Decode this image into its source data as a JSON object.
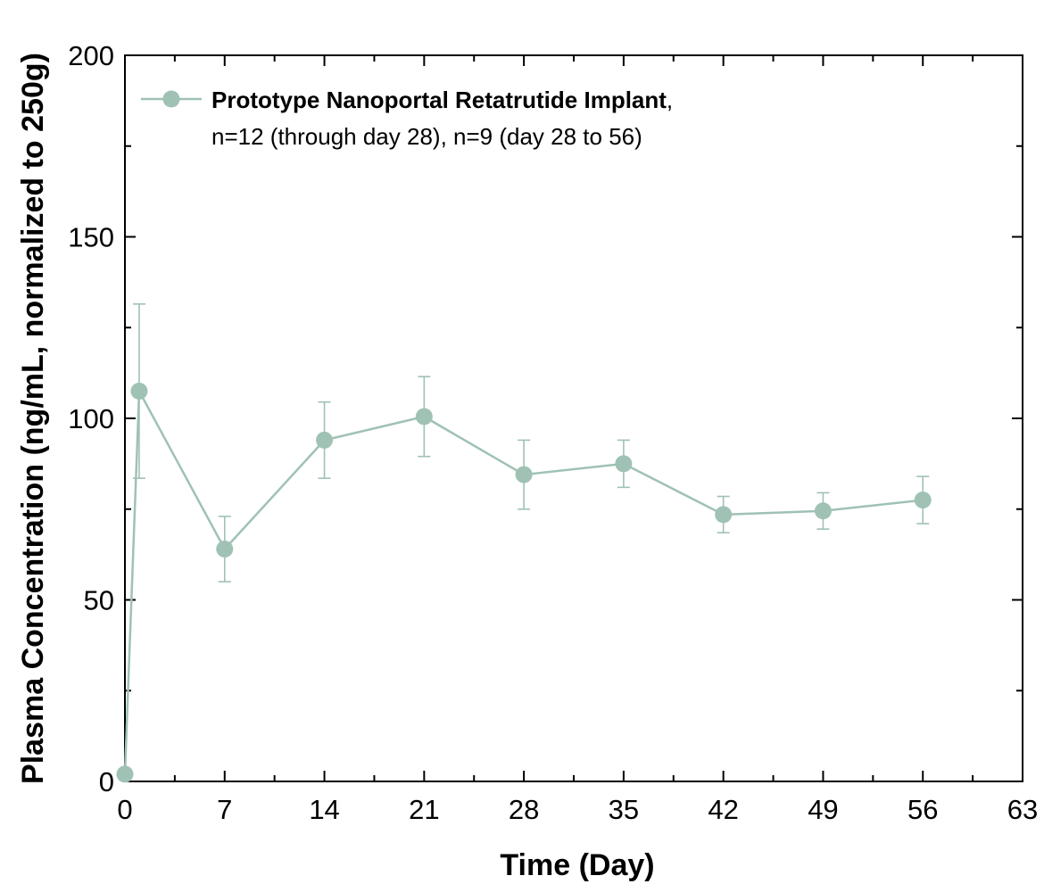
{
  "chart_data": {
    "type": "line",
    "xlabel": "Time (Day)",
    "ylabel": "Plasma Concentration (ng/mL, normalized to 250g)",
    "xlim": [
      0,
      63
    ],
    "ylim": [
      0,
      200
    ],
    "x_ticks": [
      0,
      7,
      14,
      21,
      28,
      35,
      42,
      49,
      56,
      63
    ],
    "y_ticks": [
      0,
      50,
      100,
      150,
      200
    ],
    "grid": false,
    "legend_position": "top-left",
    "colors": {
      "series": "#9fc2b4",
      "axis": "#000000"
    },
    "legend": {
      "name_bold": "Prototype Nanoportal Retatrutide Implant",
      "name_suffix": ",",
      "line2": "n=12 (through day 28), n=9 (day 28 to 56)"
    },
    "series": [
      {
        "name": "Prototype Nanoportal Retatrutide Implant",
        "x": [
          0,
          1,
          7,
          14,
          21,
          28,
          35,
          42,
          49,
          56
        ],
        "y": [
          2,
          107.5,
          64,
          94,
          100.5,
          84.5,
          87.5,
          73.5,
          74.5,
          77.5
        ],
        "err": [
          0,
          24,
          9,
          10.5,
          11,
          9.5,
          6.5,
          5,
          5,
          6.5
        ]
      }
    ]
  }
}
